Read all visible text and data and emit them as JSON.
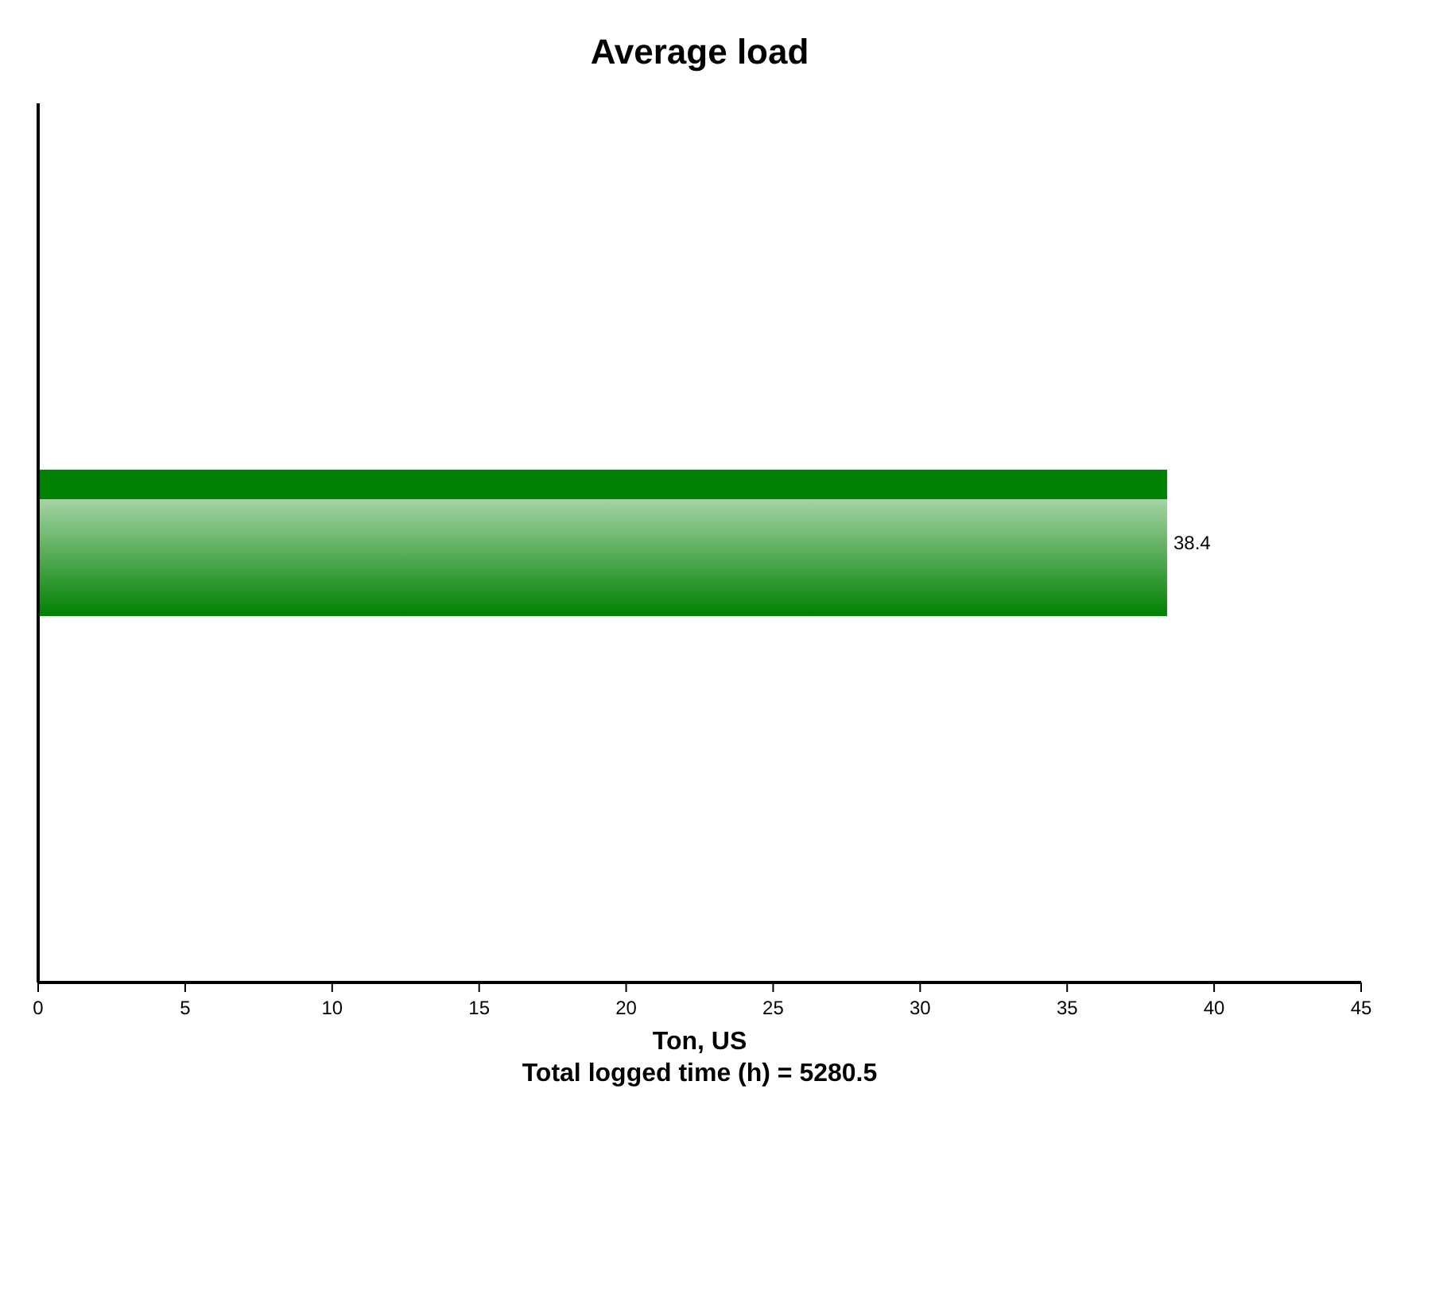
{
  "chart_data": {
    "type": "bar",
    "orientation": "horizontal",
    "title": "Average load",
    "categories": [
      null
    ],
    "values": [
      38.4
    ],
    "color": "#008000",
    "data_labels": true,
    "xlabel": "Ton, US",
    "annotations": [
      "Total logged time (h) = 5280.5"
    ],
    "xlim": [
      0,
      45
    ],
    "xticks": [
      0,
      5,
      10,
      15,
      20,
      25,
      30,
      35,
      40,
      45
    ],
    "grid": false
  }
}
